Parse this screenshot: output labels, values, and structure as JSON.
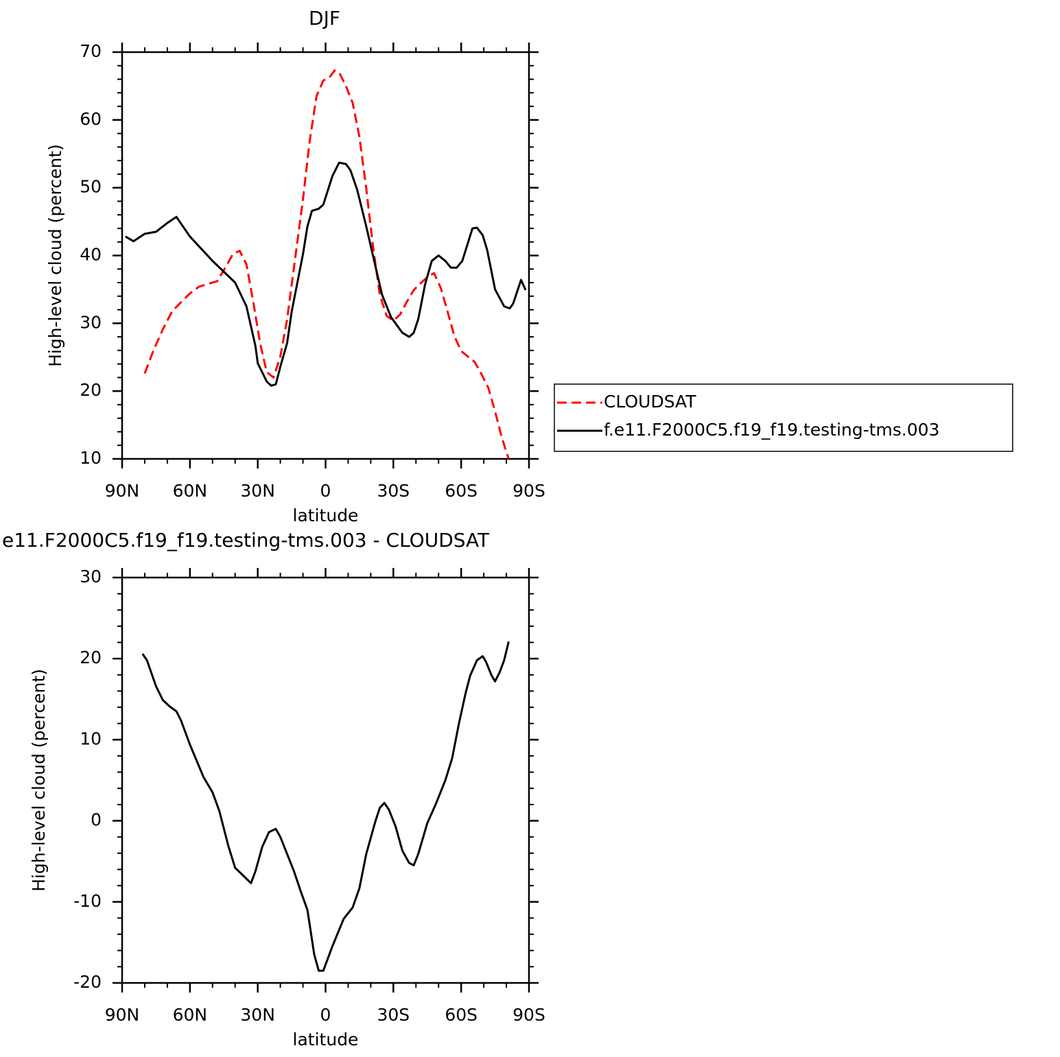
{
  "chart_data": [
    {
      "type": "line",
      "title": "DJF",
      "x_label": "latitude",
      "y_label": "High-level cloud (percent)",
      "xlim": [
        90,
        -90
      ],
      "xticks": [
        {
          "value": 90,
          "label": "90N"
        },
        {
          "value": 60,
          "label": "60N"
        },
        {
          "value": 30,
          "label": "30N"
        },
        0,
        {
          "value": -30,
          "label": "30S"
        },
        {
          "value": -60,
          "label": "60S"
        },
        {
          "value": -90,
          "label": "90S"
        }
      ],
      "ylim": [
        10,
        70
      ],
      "yticks": [
        10,
        20,
        30,
        40,
        50,
        60,
        70
      ],
      "legend": "right",
      "series": [
        {
          "name": "CLOUDSAT",
          "color": "#ff0000",
          "dashed": true,
          "x": [
            80,
            76,
            72,
            68,
            64,
            60,
            56,
            52,
            48,
            44,
            41,
            38,
            35,
            32,
            29,
            26,
            23,
            20,
            17,
            14,
            10,
            7,
            4,
            1,
            -2,
            -4,
            -6,
            -9,
            -12,
            -15,
            -18,
            -21,
            -24,
            -27,
            -30,
            -33,
            -36,
            -39,
            -42,
            -45,
            -48,
            -51,
            -54,
            -57,
            -60,
            -63,
            -66,
            -69,
            -72,
            -75,
            -78,
            -81
          ],
          "values": [
            22.6,
            26.1,
            29.1,
            31.7,
            33.1,
            34.4,
            35.4,
            35.8,
            36.2,
            38.4,
            40.2,
            40.7,
            38.7,
            33.2,
            27.1,
            22.8,
            22.0,
            25.1,
            30.6,
            38.2,
            48.3,
            56.9,
            63.5,
            65.8,
            66.4,
            67.3,
            67.0,
            65.0,
            62.5,
            57.5,
            49.9,
            41.3,
            34.2,
            31.1,
            30.4,
            31.3,
            33.2,
            34.9,
            35.9,
            36.8,
            37.4,
            35.2,
            31.7,
            28.1,
            25.9,
            25.1,
            24.3,
            22.5,
            20.5,
            17.0,
            13.1,
            10.0
          ]
        },
        {
          "name": "f.e11.F2000C5.f19_f19.testing-tms.003",
          "color": "#000000",
          "dashed": false,
          "x": [
            88.5,
            85,
            80,
            75,
            70,
            66,
            60,
            50,
            40,
            35,
            31,
            30,
            26,
            24,
            22,
            20,
            17,
            15,
            10,
            8,
            6,
            3,
            1,
            -3,
            -6,
            -9,
            -11,
            -14,
            -18,
            -22,
            -25,
            -29,
            -34,
            -37,
            -39,
            -41,
            -44,
            -47,
            -50,
            -53,
            -55.5,
            -58,
            -60.5,
            -65,
            -67,
            -69.5,
            -71.5,
            -75,
            -79,
            -81.5,
            -83,
            -86.5,
            -88.5
          ],
          "values": [
            42.8,
            42.1,
            43.2,
            43.5,
            44.8,
            45.7,
            42.8,
            39.2,
            36.0,
            32.5,
            26.6,
            24.1,
            21.4,
            20.8,
            21.0,
            23.6,
            27.1,
            31.7,
            40.2,
            44.3,
            46.6,
            46.9,
            47.5,
            51.7,
            53.7,
            53.5,
            52.6,
            49.7,
            44.3,
            38.5,
            34.2,
            30.9,
            28.6,
            28.0,
            28.6,
            30.6,
            35.7,
            39.2,
            40.0,
            39.2,
            38.2,
            38.2,
            39.2,
            44.0,
            44.1,
            43.0,
            40.8,
            35.0,
            32.5,
            32.2,
            32.9,
            36.4,
            34.9
          ]
        }
      ]
    },
    {
      "type": "line",
      "title": "e11.F2000C5.f19_f19.testing-tms.003 - CLOUDSAT",
      "x_label": "latitude",
      "y_label": "High-level cloud (percent)",
      "xlim": [
        90,
        -90
      ],
      "xticks": [
        {
          "value": 90,
          "label": "90N"
        },
        {
          "value": 60,
          "label": "60N"
        },
        {
          "value": 30,
          "label": "30N"
        },
        0,
        {
          "value": -30,
          "label": "30S"
        },
        {
          "value": -60,
          "label": "60S"
        },
        {
          "value": -90,
          "label": "90S"
        }
      ],
      "ylim": [
        -20,
        30
      ],
      "yticks": [
        -20,
        -10,
        0,
        10,
        20,
        30
      ],
      "color": "#000000",
      "x": [
        81,
        79,
        75,
        72,
        69,
        66,
        64,
        60,
        54,
        50,
        47,
        43,
        40,
        37,
        33,
        31,
        28,
        25,
        22,
        20,
        17,
        14,
        11,
        8,
        5,
        3,
        1,
        -3,
        -8,
        -12,
        -15,
        -18,
        -22,
        -24,
        -26,
        -28,
        -31,
        -34,
        -37,
        -39,
        -41,
        -45,
        -49,
        -53,
        -56,
        -59,
        -62,
        -64,
        -67,
        -69.5,
        -71,
        -73.5,
        -75,
        -77,
        -79,
        -81
      ],
      "values": [
        20.6,
        19.8,
        16.6,
        14.9,
        14.1,
        13.5,
        12.4,
        9.4,
        5.4,
        3.5,
        1.2,
        -3.1,
        -5.8,
        -6.6,
        -7.7,
        -6.2,
        -3.2,
        -1.4,
        -1.0,
        -2.0,
        -4.1,
        -6.2,
        -8.7,
        -11.0,
        -16.5,
        -18.5,
        -18.5,
        -15.5,
        -12.1,
        -10.7,
        -8.3,
        -4.1,
        -0.1,
        1.6,
        2.2,
        1.4,
        -0.7,
        -3.7,
        -5.2,
        -5.5,
        -4.1,
        -0.3,
        2.2,
        5.0,
        7.7,
        12.0,
        15.8,
        17.9,
        19.8,
        20.3,
        19.6,
        17.9,
        17.2,
        18.3,
        19.8,
        22.1
      ]
    }
  ]
}
